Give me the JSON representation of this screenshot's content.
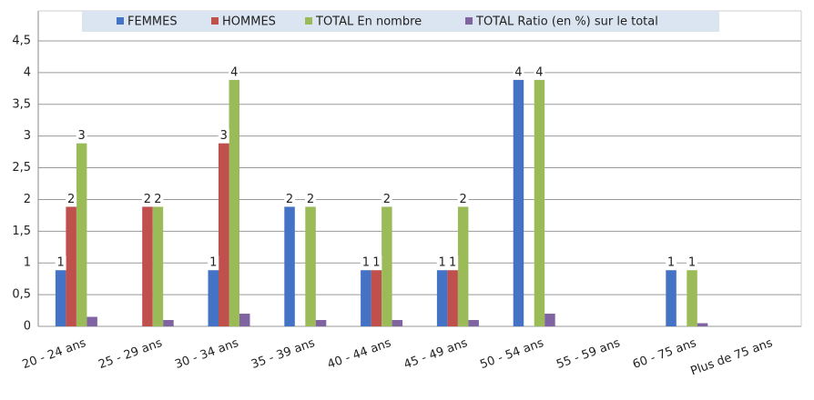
{
  "chart_data": {
    "type": "bar",
    "categories": [
      "20 - 24 ans",
      "25 - 29 ans",
      "30 - 34 ans",
      "35 - 39 ans",
      "40 - 44 ans",
      "45 - 49 ans",
      "50 - 54 ans",
      "55 - 59 ans",
      "60 - 75 ans",
      "Plus de 75 ans"
    ],
    "series": [
      {
        "name": "FEMMES",
        "color": "#4472c4",
        "data_labels": true,
        "values": [
          1,
          null,
          1,
          2,
          1,
          1,
          4,
          null,
          1,
          null
        ]
      },
      {
        "name": "HOMMES",
        "color": "#c0504d",
        "data_labels": true,
        "values": [
          2,
          2,
          3,
          null,
          1,
          1,
          null,
          null,
          null,
          null
        ]
      },
      {
        "name": "TOTAL  En nombre",
        "color": "#9bbb59",
        "data_labels": true,
        "values": [
          3,
          2,
          4,
          2,
          2,
          2,
          4,
          null,
          1,
          null
        ]
      },
      {
        "name": "TOTAL  Ratio (en %) sur le total",
        "color": "#8064a2",
        "data_labels": false,
        "values": [
          0.15,
          0.1,
          0.2,
          0.1,
          0.1,
          0.1,
          0.2,
          null,
          0.05,
          null
        ]
      }
    ],
    "ylim": [
      0,
      4.5
    ],
    "yticks": [
      0,
      {
        "value": 0.5,
        "label": "0,5"
      },
      1,
      {
        "value": 1.5,
        "label": "1,5"
      },
      2,
      {
        "value": 2.5,
        "label": "2,5"
      },
      3,
      {
        "value": 3.5,
        "label": "3,5"
      },
      4,
      {
        "value": 4.5,
        "label": "4,5"
      }
    ],
    "grid": true,
    "legend": "top"
  }
}
